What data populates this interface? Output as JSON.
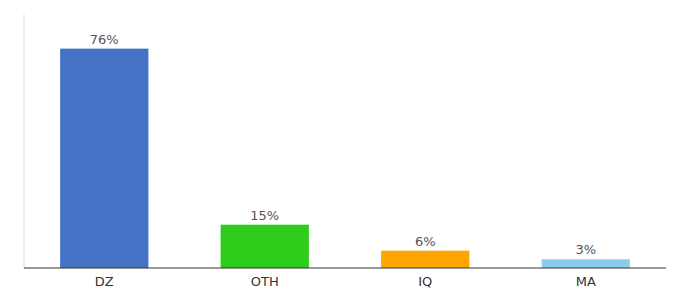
{
  "chart_data": {
    "type": "bar",
    "categories": [
      "DZ",
      "OTH",
      "IQ",
      "MA"
    ],
    "values": [
      76,
      15,
      6,
      3
    ],
    "value_labels": [
      "76%",
      "15%",
      "6%",
      "3%"
    ],
    "colors": [
      "#4472c4",
      "#2ecc1a",
      "#ffa500",
      "#87ceeb"
    ],
    "ylim": [
      0,
      88
    ],
    "grid": false,
    "data_labels": true,
    "tick_labels": "x"
  }
}
